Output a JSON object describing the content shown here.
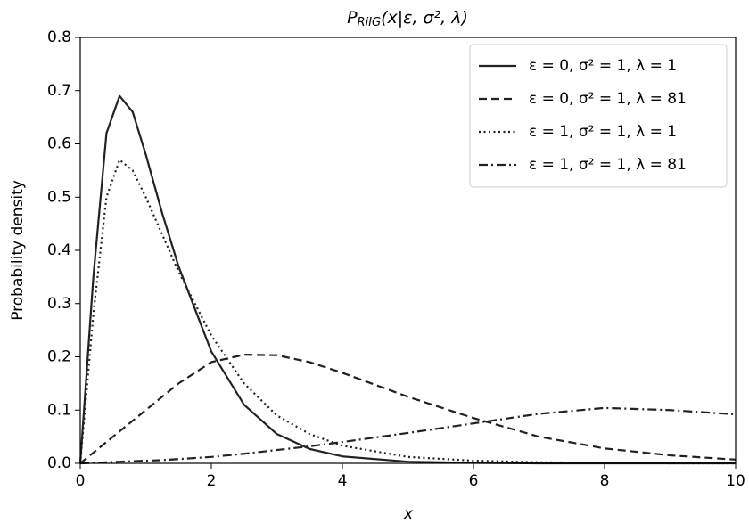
{
  "chart_data": {
    "type": "line",
    "title": {
      "main": "P",
      "sub": "RiIG",
      "rest": "(x|ε, σ², λ)"
    },
    "xlabel": "x",
    "ylabel": "Probability density",
    "x": [
      0,
      0.2,
      0.4,
      0.6,
      0.8,
      1,
      1.25,
      1.5,
      2,
      2.5,
      3,
      3.5,
      4,
      5,
      6,
      7,
      8,
      9,
      10
    ],
    "series": [
      {
        "name": "ε = 0, σ² = 1, λ = 1",
        "color": "#222222",
        "dash": "solid",
        "values": [
          0,
          0.35,
          0.62,
          0.69,
          0.66,
          0.58,
          0.47,
          0.37,
          0.21,
          0.11,
          0.055,
          0.027,
          0.013,
          0.003,
          0.001,
          0,
          0,
          0,
          0
        ]
      },
      {
        "name": "ε = 0, σ² = 1, λ = 81",
        "color": "#222222",
        "dash": "dashed",
        "values": [
          0,
          0.02,
          0.04,
          0.06,
          0.08,
          0.1,
          0.125,
          0.15,
          0.19,
          0.204,
          0.203,
          0.19,
          0.17,
          0.125,
          0.085,
          0.05,
          0.028,
          0.015,
          0.007
        ]
      },
      {
        "name": "ε = 1, σ² = 1, λ = 1",
        "color": "#222222",
        "dash": "dotted",
        "values": [
          0,
          0.28,
          0.5,
          0.57,
          0.55,
          0.5,
          0.43,
          0.36,
          0.24,
          0.15,
          0.09,
          0.055,
          0.033,
          0.012,
          0.005,
          0.002,
          0.001,
          0,
          0
        ]
      },
      {
        "name": "ε = 1, σ² = 1, λ = 81",
        "color": "#222222",
        "dash": "dashdot",
        "values": [
          0,
          0.001,
          0.002,
          0.003,
          0.004,
          0.005,
          0.006,
          0.008,
          0.012,
          0.018,
          0.025,
          0.032,
          0.04,
          0.057,
          0.075,
          0.093,
          0.104,
          0.1,
          0.092
        ]
      }
    ],
    "xlim": [
      0,
      10
    ],
    "xticks": [
      0,
      2,
      4,
      6,
      8,
      10
    ],
    "ylim": [
      0,
      0.8
    ],
    "yticks": [
      {
        "value": 0,
        "label": "0.0"
      },
      0.1,
      0.2,
      0.3,
      0.4,
      0.5,
      0.6,
      0.7,
      0.8
    ],
    "legend": "upper-right",
    "grid": false
  }
}
